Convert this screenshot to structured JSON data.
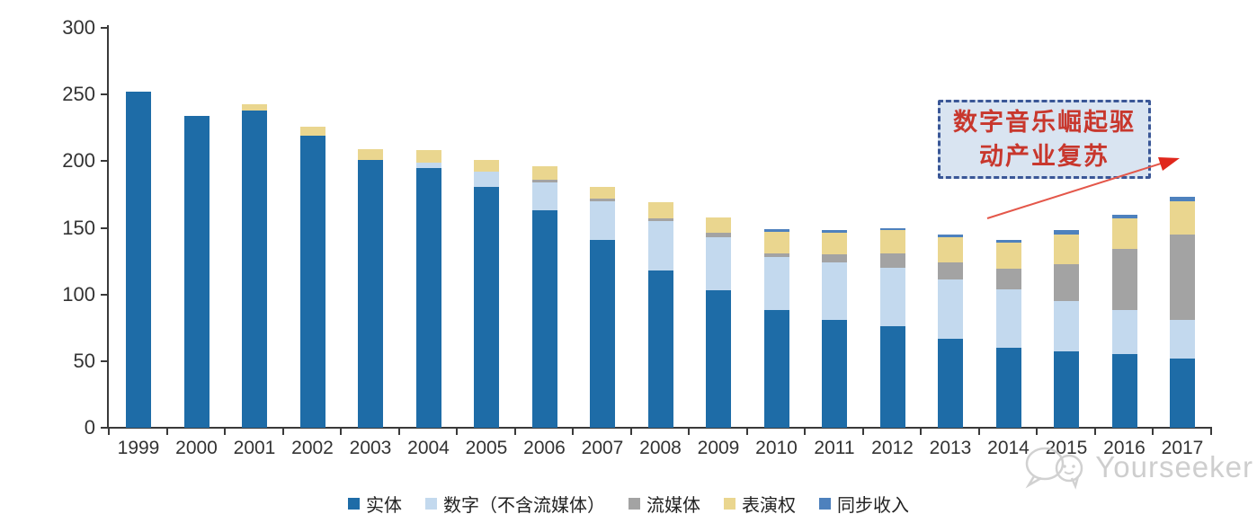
{
  "chart_data": {
    "type": "bar",
    "stacked": true,
    "categories": [
      "1999",
      "2000",
      "2001",
      "2002",
      "2003",
      "2004",
      "2005",
      "2006",
      "2007",
      "2008",
      "2009",
      "2010",
      "2011",
      "2012",
      "2013",
      "2014",
      "2015",
      "2016",
      "2017"
    ],
    "series": [
      {
        "name": "实体",
        "color": "#1e6ca7",
        "values": [
          252,
          234,
          238,
          219,
          201,
          195,
          181,
          163,
          141,
          118,
          103,
          88,
          81,
          76,
          67,
          60,
          57,
          55,
          52
        ]
      },
      {
        "name": "数字（不含流媒体）",
        "color": "#c3d9ee",
        "values": [
          0,
          0,
          0,
          0,
          0,
          4,
          11,
          21,
          29,
          37,
          40,
          40,
          43,
          44,
          44,
          44,
          38,
          33,
          29
        ]
      },
      {
        "name": "流媒体",
        "color": "#a3a3a3",
        "values": [
          0,
          0,
          0,
          0,
          0,
          0,
          0,
          2,
          2,
          2,
          3,
          3,
          6,
          11,
          13,
          15,
          28,
          46,
          64
        ]
      },
      {
        "name": "表演权",
        "color": "#ead68f",
        "values": [
          0,
          0,
          5,
          7,
          8,
          9,
          9,
          10,
          9,
          12,
          12,
          16,
          16,
          17,
          19,
          20,
          22,
          23,
          25
        ]
      },
      {
        "name": "同步收入",
        "color": "#4e81bd",
        "values": [
          0,
          0,
          0,
          0,
          0,
          0,
          0,
          0,
          0,
          0,
          0,
          2,
          2,
          2,
          2,
          2,
          3,
          3,
          3
        ]
      }
    ],
    "ylim": [
      0,
      300
    ],
    "yticks": [
      0,
      50,
      100,
      150,
      200,
      250,
      300
    ],
    "grid": false,
    "legend_position": "bottom"
  },
  "annotation": {
    "line1": "数字音乐崛起驱",
    "line2": "动产业复苏",
    "text_color": "#c8372d",
    "box_fill": "#d9e4f1",
    "box_border_color": "#3a5797",
    "arrow_color": "#e0452f"
  },
  "watermark": {
    "text": "Yourseeker",
    "color": "#c6c6c6"
  },
  "axis": {
    "color": "#3a3a3a"
  }
}
